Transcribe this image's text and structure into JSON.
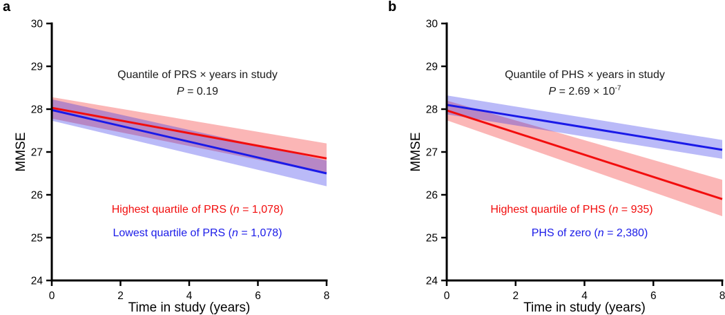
{
  "colors": {
    "red": "#f20d0d",
    "blue": "#1a1ae8",
    "axis": "#000000",
    "band_opacity": 0.3
  },
  "chart_data": [
    {
      "type": "line",
      "panel_label": "a",
      "xlabel": "Time in study (years)",
      "ylabel": "MMSE",
      "xlim": [
        0,
        8
      ],
      "ylim": [
        24,
        30
      ],
      "xticks": [
        0,
        2,
        4,
        6,
        8
      ],
      "yticks": [
        24,
        25,
        26,
        27,
        28,
        29,
        30
      ],
      "grid": false,
      "annotation": {
        "line1": "Quantile of PRS × years in study",
        "p_label": "P",
        "p_value": " = 0.19",
        "p_exponent": ""
      },
      "series": [
        {
          "name": "Highest quartile of PRS",
          "n": "1,078",
          "color": "#f20d0d",
          "x": [
            0,
            8
          ],
          "y": [
            28.03,
            26.85
          ],
          "ci_upper": [
            28.28,
            27.2
          ],
          "ci_lower": [
            27.78,
            26.5
          ],
          "legend": {
            "prefix": "Highest quartile of PRS (",
            "n_label": "n",
            "suffix": " = 1,078)"
          }
        },
        {
          "name": "Lowest quartile of PRS",
          "n": "1,078",
          "color": "#1a1ae8",
          "x": [
            0,
            8
          ],
          "y": [
            27.98,
            26.5
          ],
          "ci_upper": [
            28.23,
            26.8
          ],
          "ci_lower": [
            27.73,
            26.2
          ],
          "legend": {
            "prefix": "Lowest quartile of PRS (",
            "n_label": "n",
            "suffix": " = 1,078)"
          }
        }
      ]
    },
    {
      "type": "line",
      "panel_label": "b",
      "xlabel": "Time in study (years)",
      "ylabel": "MMSE",
      "xlim": [
        0,
        8
      ],
      "ylim": [
        24,
        30
      ],
      "xticks": [
        0,
        2,
        4,
        6,
        8
      ],
      "yticks": [
        24,
        25,
        26,
        27,
        28,
        29,
        30
      ],
      "grid": false,
      "annotation": {
        "line1": "Quantile of PHS × years in study",
        "p_label": "P",
        "p_value": " = 2.69 × 10",
        "p_exponent": "-7"
      },
      "series": [
        {
          "name": "Highest quartile of PHS",
          "n": "935",
          "color": "#f20d0d",
          "x": [
            0,
            8
          ],
          "y": [
            27.97,
            25.9
          ],
          "ci_upper": [
            28.2,
            26.35
          ],
          "ci_lower": [
            27.74,
            25.5
          ],
          "legend": {
            "prefix": "Highest quartile of PHS (",
            "n_label": "n",
            "suffix": " = 935)"
          }
        },
        {
          "name": "PHS of zero",
          "n": "2,380",
          "color": "#1a1ae8",
          "x": [
            0,
            8
          ],
          "y": [
            28.1,
            27.05
          ],
          "ci_upper": [
            28.32,
            27.28
          ],
          "ci_lower": [
            27.88,
            26.84
          ],
          "legend": {
            "prefix": "PHS of zero (",
            "n_label": "n",
            "suffix": " = 2,380)"
          }
        }
      ]
    }
  ]
}
